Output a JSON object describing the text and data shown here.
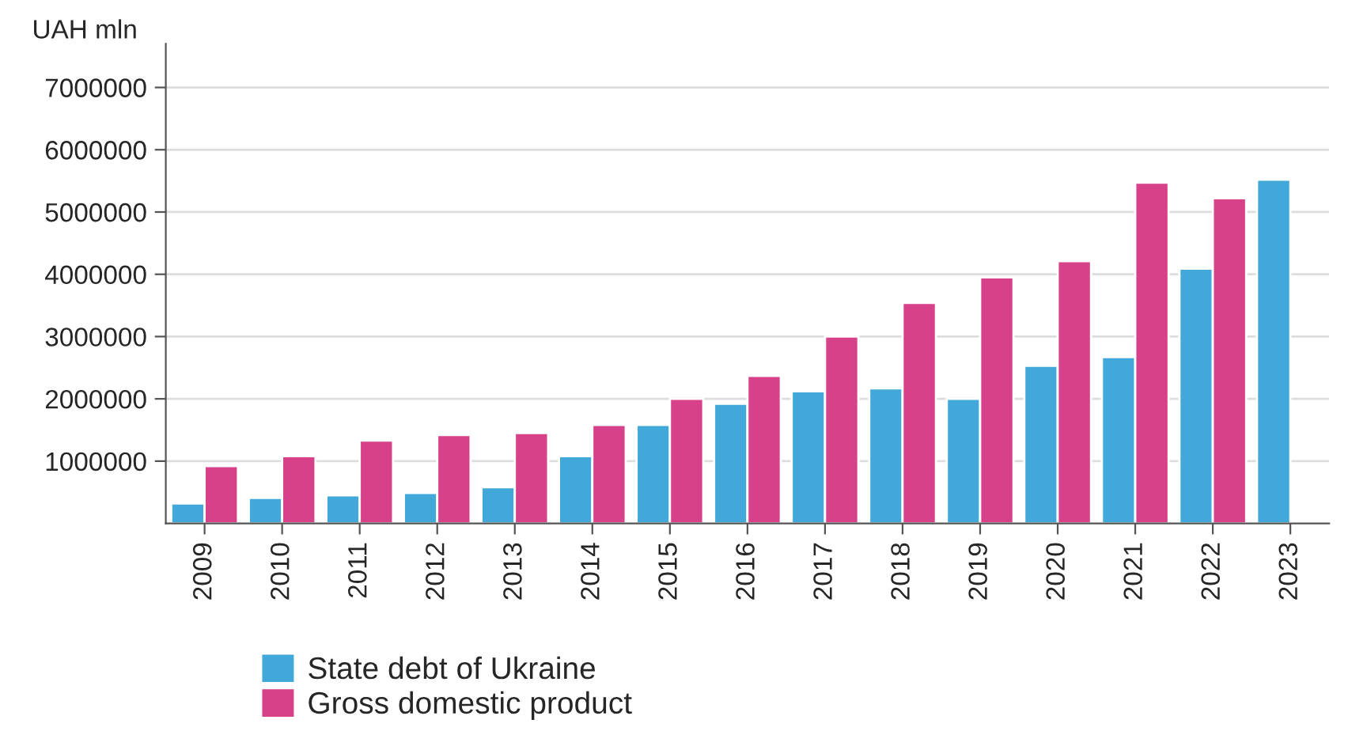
{
  "chart_data": {
    "type": "bar",
    "ylabel": "UAH mln",
    "categories": [
      "2009",
      "2010",
      "2011",
      "2012",
      "2013",
      "2014",
      "2015",
      "2016",
      "2017",
      "2018",
      "2019",
      "2020",
      "2021",
      "2022",
      "2023"
    ],
    "series": [
      {
        "name": "State debt of Ukraine",
        "color": "#41a8d9",
        "values": [
          320000,
          410000,
          450000,
          490000,
          580000,
          1080000,
          1580000,
          1920000,
          2120000,
          2170000,
          2000000,
          2530000,
          2670000,
          4090000,
          5520000
        ]
      },
      {
        "name": "Gross domestic product",
        "color": "#d6418a",
        "values": [
          920000,
          1080000,
          1330000,
          1420000,
          1450000,
          1580000,
          2000000,
          2370000,
          3000000,
          3540000,
          3950000,
          4210000,
          5470000,
          5220000,
          null
        ]
      }
    ],
    "ylim": [
      0,
      7700000
    ],
    "yticks": [
      1000000,
      2000000,
      3000000,
      4000000,
      5000000,
      6000000,
      7000000
    ],
    "grid": "y",
    "legend": "bottom left"
  }
}
